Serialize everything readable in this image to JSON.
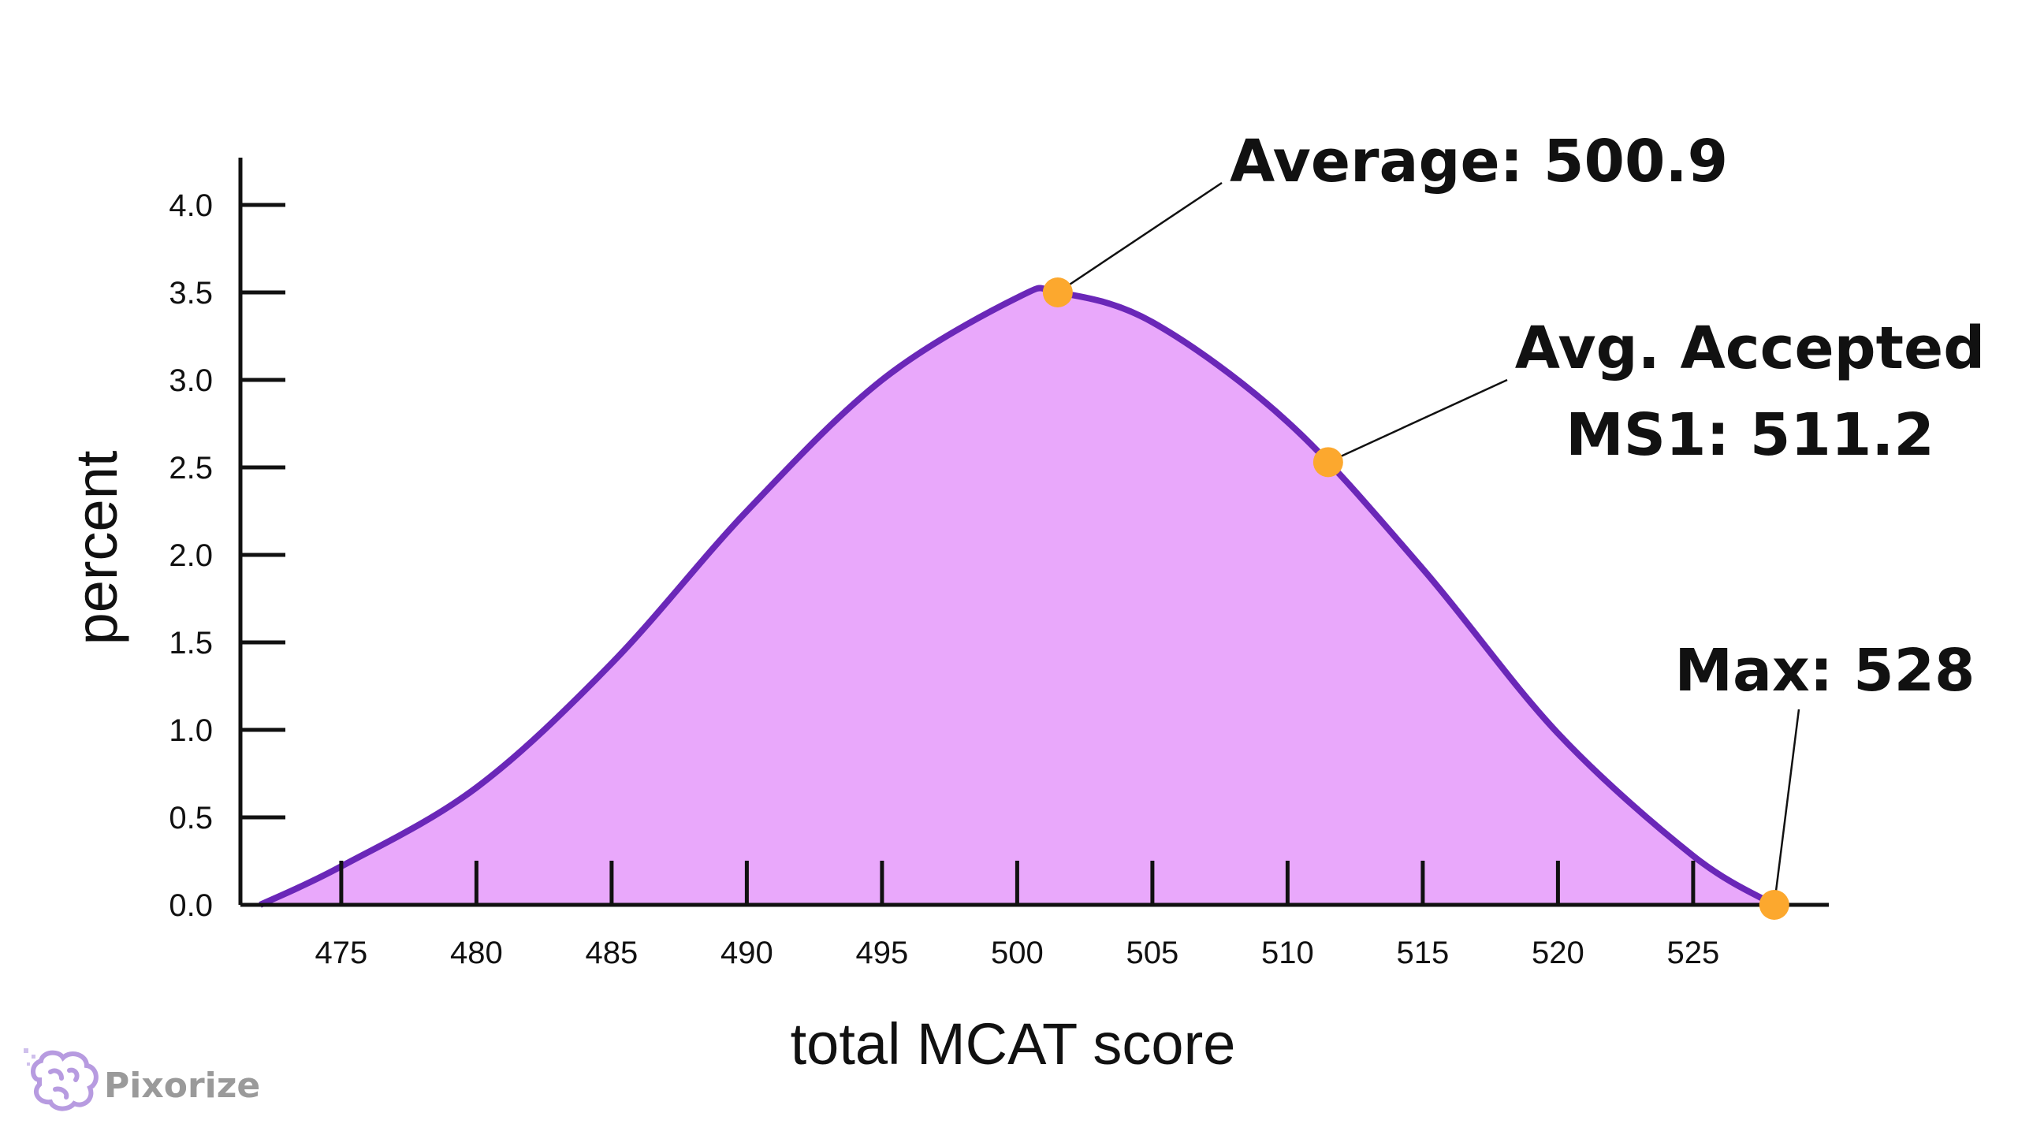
{
  "chart_data": {
    "type": "area",
    "xlabel": "total MCAT score",
    "ylabel": "percent",
    "xlim": [
      472,
      530
    ],
    "ylim": [
      0,
      4.0
    ],
    "x_ticks": [
      475,
      480,
      485,
      490,
      495,
      500,
      505,
      510,
      515,
      520,
      525
    ],
    "y_ticks": [
      "0.0",
      "0.5",
      "1.0",
      "1.5",
      "2.0",
      "2.5",
      "3.0",
      "3.5",
      "4.0"
    ],
    "grid": false,
    "series": [
      {
        "x": [
          472,
          475,
          480,
          485,
          490,
          495,
          500,
          501.5,
          505,
          510,
          515,
          520,
          525,
          528
        ],
        "y": [
          0.0,
          0.22,
          0.67,
          1.38,
          2.25,
          3.0,
          3.47,
          3.5,
          3.33,
          2.76,
          1.92,
          0.98,
          0.28,
          0.0
        ]
      }
    ],
    "colors": {
      "fill": "#e9a8fb",
      "line": "#6a27b8",
      "marker": "#fca82e",
      "axis": "#111111"
    },
    "annotations": [
      {
        "text": "Average: 500.9",
        "x": 501.5,
        "y": 3.5
      },
      {
        "lines": [
          "Avg. Accepted",
          "MS1: 511.2"
        ],
        "x": 511.5,
        "y": 2.53
      },
      {
        "text": "Max: 528",
        "x": 528,
        "y": 0.0
      }
    ]
  },
  "brand": {
    "name": "Pixorize",
    "icon": "brain-icon"
  }
}
